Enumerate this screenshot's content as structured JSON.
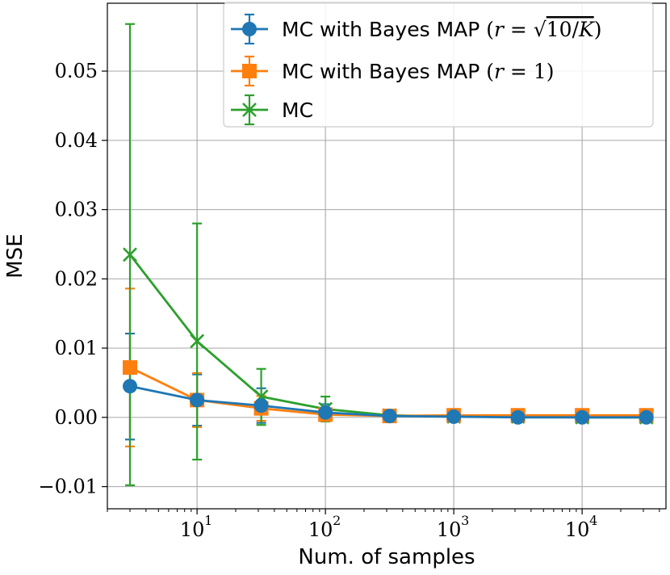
{
  "chart_data": {
    "type": "line",
    "title": "",
    "xlabel": "Num. of samples",
    "ylabel": "MSE",
    "xscale": "log",
    "xlim": [
      2.0,
      45000
    ],
    "ylim": [
      -0.0132,
      0.0598
    ],
    "grid": true,
    "legend_position": "top-right",
    "x_ticks": [
      {
        "base": "10",
        "exp": "1",
        "value": 10
      },
      {
        "base": "10",
        "exp": "2",
        "value": 100
      },
      {
        "base": "10",
        "exp": "3",
        "value": 1000
      },
      {
        "base": "10",
        "exp": "4",
        "value": 10000
      }
    ],
    "y_ticks": [
      {
        "label": "−0.01",
        "value": -0.01
      },
      {
        "label": "0.00",
        "value": 0.0
      },
      {
        "label": "0.01",
        "value": 0.01
      },
      {
        "label": "0.02",
        "value": 0.02
      },
      {
        "label": "0.03",
        "value": 0.03
      },
      {
        "label": "0.04",
        "value": 0.04
      },
      {
        "label": "0.05",
        "value": 0.05
      }
    ],
    "x": [
      3,
      10,
      31.6,
      100,
      316,
      1000,
      3162,
      10000,
      31623
    ],
    "series": [
      {
        "name": "MC with Bayes MAP",
        "legend_math": {
          "var": "r",
          "eq": " = ",
          "radicand_num": "10/",
          "radicand_var": "K"
        },
        "color": "#1f77b4",
        "marker": "circle",
        "values": [
          0.0045,
          0.0025,
          0.0017,
          0.0007,
          0.0002,
          0.0001,
          0.0,
          0.0,
          0.0
        ],
        "err_low": [
          -0.0032,
          -0.0012,
          -0.0008,
          -0.0005,
          -0.0002,
          -0.0001,
          -0.0001,
          -0.0001,
          -0.0001
        ],
        "err_high": [
          0.0121,
          0.0062,
          0.0042,
          0.0019,
          0.0006,
          0.0003,
          0.0001,
          0.0001,
          0.0001
        ]
      },
      {
        "name": "MC with Bayes MAP",
        "legend_math": {
          "var": "r",
          "eq": " = 1",
          "radicand_num": "",
          "radicand_var": ""
        },
        "color": "#ff7f0e",
        "marker": "square",
        "values": [
          0.0072,
          0.0025,
          0.0013,
          0.0004,
          0.0002,
          0.0003,
          0.0003,
          0.0003,
          0.0003
        ],
        "err_low": [
          -0.0042,
          -0.0014,
          -0.0005,
          -0.0002,
          -0.0001,
          0.0001,
          0.0002,
          0.0002,
          0.0002
        ],
        "err_high": [
          0.0186,
          0.0064,
          0.0031,
          0.001,
          0.0005,
          0.0005,
          0.0004,
          0.0004,
          0.0004
        ]
      },
      {
        "name": "MC",
        "legend_math": null,
        "color": "#2ca02c",
        "marker": "x",
        "values": [
          0.0235,
          0.011,
          0.003,
          0.0012,
          0.0003,
          0.0001,
          0.0001,
          0.0,
          0.0
        ],
        "err_low": [
          -0.0098,
          -0.0061,
          -0.0011,
          -0.0006,
          -0.0002,
          -0.0001,
          0.0,
          0.0,
          0.0
        ],
        "err_high": [
          0.0568,
          0.028,
          0.007,
          0.003,
          0.0008,
          0.0003,
          0.0002,
          0.0001,
          0.0001
        ]
      }
    ]
  }
}
